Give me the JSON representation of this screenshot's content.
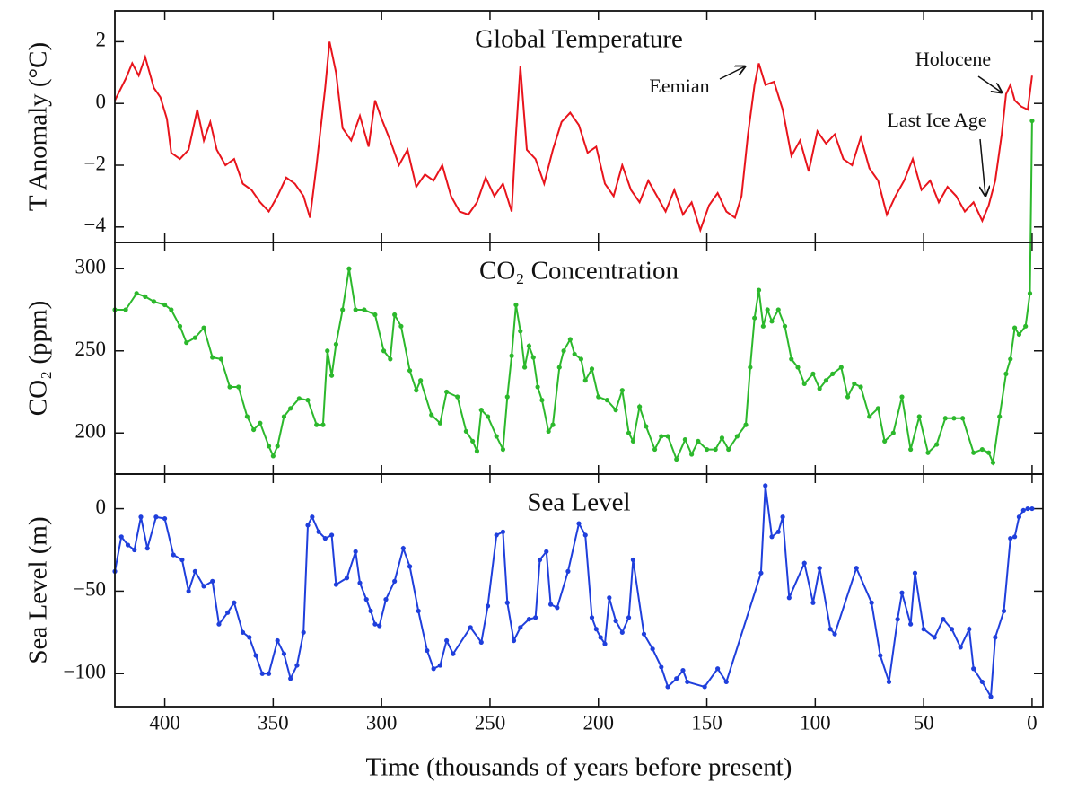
{
  "chart_data": [
    {
      "type": "line",
      "title": "Global Temperature",
      "ylabel": "T Anomaly (°C)",
      "color": "#e8141c",
      "markers": false,
      "xlim": [
        423,
        -5
      ],
      "xticks": [
        400,
        350,
        300,
        250,
        200,
        150,
        100,
        50,
        0
      ],
      "ylim": [
        -4.5,
        3
      ],
      "yticks": [
        2,
        0,
        {
          "value": -2,
          "label": "−2"
        },
        {
          "value": -4,
          "label": "−4"
        }
      ],
      "annotations": [
        "Eemian",
        "Holocene",
        "Last Ice Age"
      ],
      "x": [
        423,
        418,
        415,
        412,
        409,
        405,
        402,
        399,
        397,
        393,
        389,
        385,
        382,
        379,
        376,
        372,
        368,
        364,
        360,
        356,
        352,
        348,
        344,
        340,
        336,
        333,
        330,
        326,
        324,
        321,
        318,
        314,
        310,
        306,
        303,
        300,
        296,
        292,
        288,
        284,
        280,
        276,
        272,
        268,
        264,
        260,
        256,
        252,
        248,
        244,
        240,
        238,
        236,
        233,
        229,
        225,
        221,
        217,
        213,
        209,
        205,
        201,
        197,
        193,
        189,
        185,
        181,
        177,
        173,
        169,
        165,
        161,
        157,
        153,
        149,
        145,
        141,
        137,
        134,
        131,
        128,
        126,
        123,
        119,
        115,
        111,
        107,
        103,
        99,
        95,
        91,
        87,
        83,
        79,
        75,
        71,
        67,
        63,
        59,
        55,
        51,
        47,
        43,
        39,
        35,
        31,
        27,
        23,
        20,
        17,
        14,
        12,
        10,
        8,
        5,
        2,
        0
      ],
      "values": [
        0.1,
        0.8,
        1.3,
        0.9,
        1.5,
        0.5,
        0.2,
        -0.5,
        -1.6,
        -1.8,
        -1.5,
        -0.2,
        -1.2,
        -0.6,
        -1.5,
        -2.0,
        -1.8,
        -2.6,
        -2.8,
        -3.2,
        -3.5,
        -3.0,
        -2.4,
        -2.6,
        -3.0,
        -3.7,
        -2.0,
        0.5,
        2.0,
        1.0,
        -0.8,
        -1.2,
        -0.4,
        -1.4,
        0.1,
        -0.5,
        -1.2,
        -2.0,
        -1.5,
        -2.7,
        -2.3,
        -2.5,
        -2.0,
        -3.0,
        -3.5,
        -3.6,
        -3.2,
        -2.4,
        -3.0,
        -2.6,
        -3.5,
        -1.0,
        1.2,
        -1.5,
        -1.8,
        -2.6,
        -1.5,
        -0.6,
        -0.3,
        -0.7,
        -1.6,
        -1.4,
        -2.6,
        -3.0,
        -2.0,
        -2.8,
        -3.2,
        -2.5,
        -3.0,
        -3.5,
        -2.8,
        -3.6,
        -3.2,
        -4.1,
        -3.3,
        -2.9,
        -3.5,
        -3.7,
        -3.0,
        -1.0,
        0.6,
        1.3,
        0.6,
        0.7,
        -0.2,
        -1.7,
        -1.2,
        -2.2,
        -0.9,
        -1.3,
        -1.0,
        -1.8,
        -2.0,
        -1.1,
        -2.1,
        -2.5,
        -3.6,
        -3.0,
        -2.5,
        -1.8,
        -2.8,
        -2.5,
        -3.2,
        -2.7,
        -3.0,
        -3.5,
        -3.2,
        -3.8,
        -3.3,
        -2.5,
        -1.0,
        0.3,
        0.6,
        0.1,
        -0.1,
        -0.2,
        0.9
      ]
    },
    {
      "type": "line",
      "title": "CO₂ Concentration",
      "ylabel": "CO₂ (ppm)",
      "color": "#2cb82c",
      "markers": true,
      "xlim": [
        423,
        -5
      ],
      "xticks": [
        400,
        350,
        300,
        250,
        200,
        150,
        100,
        50,
        0
      ],
      "ylim": [
        175,
        316
      ],
      "yticks": [
        300,
        250,
        200
      ],
      "x": [
        423,
        418,
        413,
        409,
        405,
        400,
        397,
        393,
        390,
        386,
        382,
        378,
        374,
        370,
        366,
        362,
        359,
        356,
        352,
        350,
        348,
        345,
        342,
        338,
        334,
        330,
        327,
        325,
        323,
        321,
        318,
        315,
        312,
        308,
        303,
        299,
        296,
        294,
        291,
        287,
        284,
        282,
        277,
        273,
        270,
        265,
        261,
        258,
        256,
        254,
        251,
        247,
        244,
        242,
        240,
        238,
        236,
        234,
        232,
        230,
        228,
        226,
        223,
        221,
        218,
        216,
        213,
        211,
        208,
        206,
        203,
        200,
        196,
        192,
        189,
        186,
        184,
        181,
        178,
        174,
        171,
        168,
        164,
        160,
        157,
        154,
        150,
        146,
        143,
        140,
        136,
        132,
        130,
        128,
        126,
        124,
        122,
        120,
        117,
        114,
        111,
        108,
        105,
        101,
        98,
        95,
        92,
        88,
        85,
        82,
        79,
        75,
        71,
        68,
        64,
        60,
        56,
        52,
        48,
        44,
        40,
        36,
        32,
        27,
        23,
        20,
        18,
        15,
        12,
        10,
        8,
        6,
        3,
        1,
        0
      ],
      "values": [
        275,
        275,
        285,
        283,
        280,
        278,
        275,
        265,
        255,
        258,
        264,
        246,
        245,
        228,
        228,
        210,
        202,
        206,
        192,
        186,
        192,
        210,
        215,
        221,
        220,
        205,
        205,
        250,
        235,
        254,
        275,
        300,
        275,
        275,
        272,
        250,
        245,
        272,
        265,
        238,
        226,
        232,
        211,
        206,
        225,
        222,
        201,
        195,
        189,
        214,
        210,
        198,
        190,
        222,
        247,
        278,
        262,
        240,
        253,
        246,
        228,
        220,
        201,
        205,
        240,
        250,
        257,
        248,
        245,
        232,
        239,
        222,
        220,
        214,
        226,
        200,
        195,
        216,
        204,
        190,
        198,
        198,
        184,
        196,
        187,
        195,
        190,
        190,
        197,
        190,
        198,
        205,
        240,
        270,
        287,
        265,
        275,
        268,
        275,
        265,
        245,
        240,
        230,
        236,
        227,
        232,
        236,
        240,
        222,
        230,
        228,
        210,
        215,
        195,
        200,
        222,
        190,
        210,
        188,
        193,
        209,
        209,
        209,
        188,
        190,
        188,
        182,
        210,
        236,
        245,
        264,
        260,
        265,
        285,
        390
      ]
    },
    {
      "type": "line",
      "title": "Sea Level",
      "ylabel": "Sea Level (m)",
      "xlabel": "Time (thousands of years before present)",
      "color": "#1f3fdc",
      "markers": true,
      "xlim": [
        423,
        -5
      ],
      "xticks": [
        400,
        350,
        300,
        250,
        200,
        150,
        100,
        50,
        0
      ],
      "ylim": [
        -120,
        21
      ],
      "yticks": [
        0,
        {
          "value": -50,
          "label": "−50"
        },
        {
          "value": -100,
          "label": "−100"
        }
      ],
      "x": [
        423,
        420,
        417,
        414,
        411,
        408,
        404,
        400,
        396,
        392,
        389,
        386,
        382,
        378,
        375,
        371,
        368,
        364,
        361,
        358,
        355,
        352,
        348,
        345,
        342,
        339,
        336,
        334,
        332,
        329,
        326,
        323,
        321,
        316,
        312,
        310,
        307,
        305,
        303,
        301,
        298,
        294,
        290,
        287,
        283,
        279,
        276,
        273,
        270,
        267,
        259,
        254,
        251,
        247,
        244,
        242,
        239,
        236,
        232,
        229,
        227,
        224,
        222,
        219,
        214,
        209,
        206,
        203,
        201,
        199,
        197,
        195,
        192,
        189,
        186,
        184,
        179,
        175,
        171,
        168,
        164,
        161,
        159,
        151,
        145,
        141,
        125,
        123,
        120,
        117,
        115,
        112,
        105,
        101,
        98,
        93,
        91,
        81,
        74,
        70,
        66,
        62,
        60,
        56,
        54,
        50,
        45,
        41,
        37,
        33,
        29,
        27,
        23,
        19,
        17,
        13,
        10,
        8,
        6,
        4,
        2,
        0
      ],
      "values": [
        -38,
        -17,
        -22,
        -25,
        -5,
        -24,
        -5,
        -6,
        -28,
        -31,
        -50,
        -38,
        -47,
        -44,
        -70,
        -63,
        -57,
        -75,
        -78,
        -89,
        -100,
        -100,
        -80,
        -88,
        -103,
        -95,
        -75,
        -10,
        -5,
        -14,
        -18,
        -16,
        -46,
        -42,
        -26,
        -45,
        -55,
        -62,
        -70,
        -71,
        -55,
        -44,
        -24,
        -35,
        -62,
        -86,
        -97,
        -95,
        -80,
        -88,
        -72,
        -81,
        -59,
        -16,
        -14,
        -57,
        -80,
        -72,
        -67,
        -66,
        -31,
        -26,
        -58,
        -60,
        -38,
        -9,
        -16,
        -66,
        -73,
        -78,
        -82,
        -54,
        -68,
        -75,
        -66,
        -31,
        -76,
        -85,
        -96,
        -108,
        -103,
        -98,
        -105,
        -108,
        -97,
        -105,
        -39,
        14,
        -17,
        -14,
        -5,
        -54,
        -33,
        -57,
        -36,
        -73,
        -76,
        -36,
        -57,
        -89,
        -105,
        -67,
        -51,
        -70,
        -39,
        -73,
        -78,
        -67,
        -73,
        -84,
        -73,
        -97,
        -105,
        -114,
        -78,
        -62,
        -18,
        -17,
        -5,
        -1,
        0,
        0
      ]
    }
  ]
}
